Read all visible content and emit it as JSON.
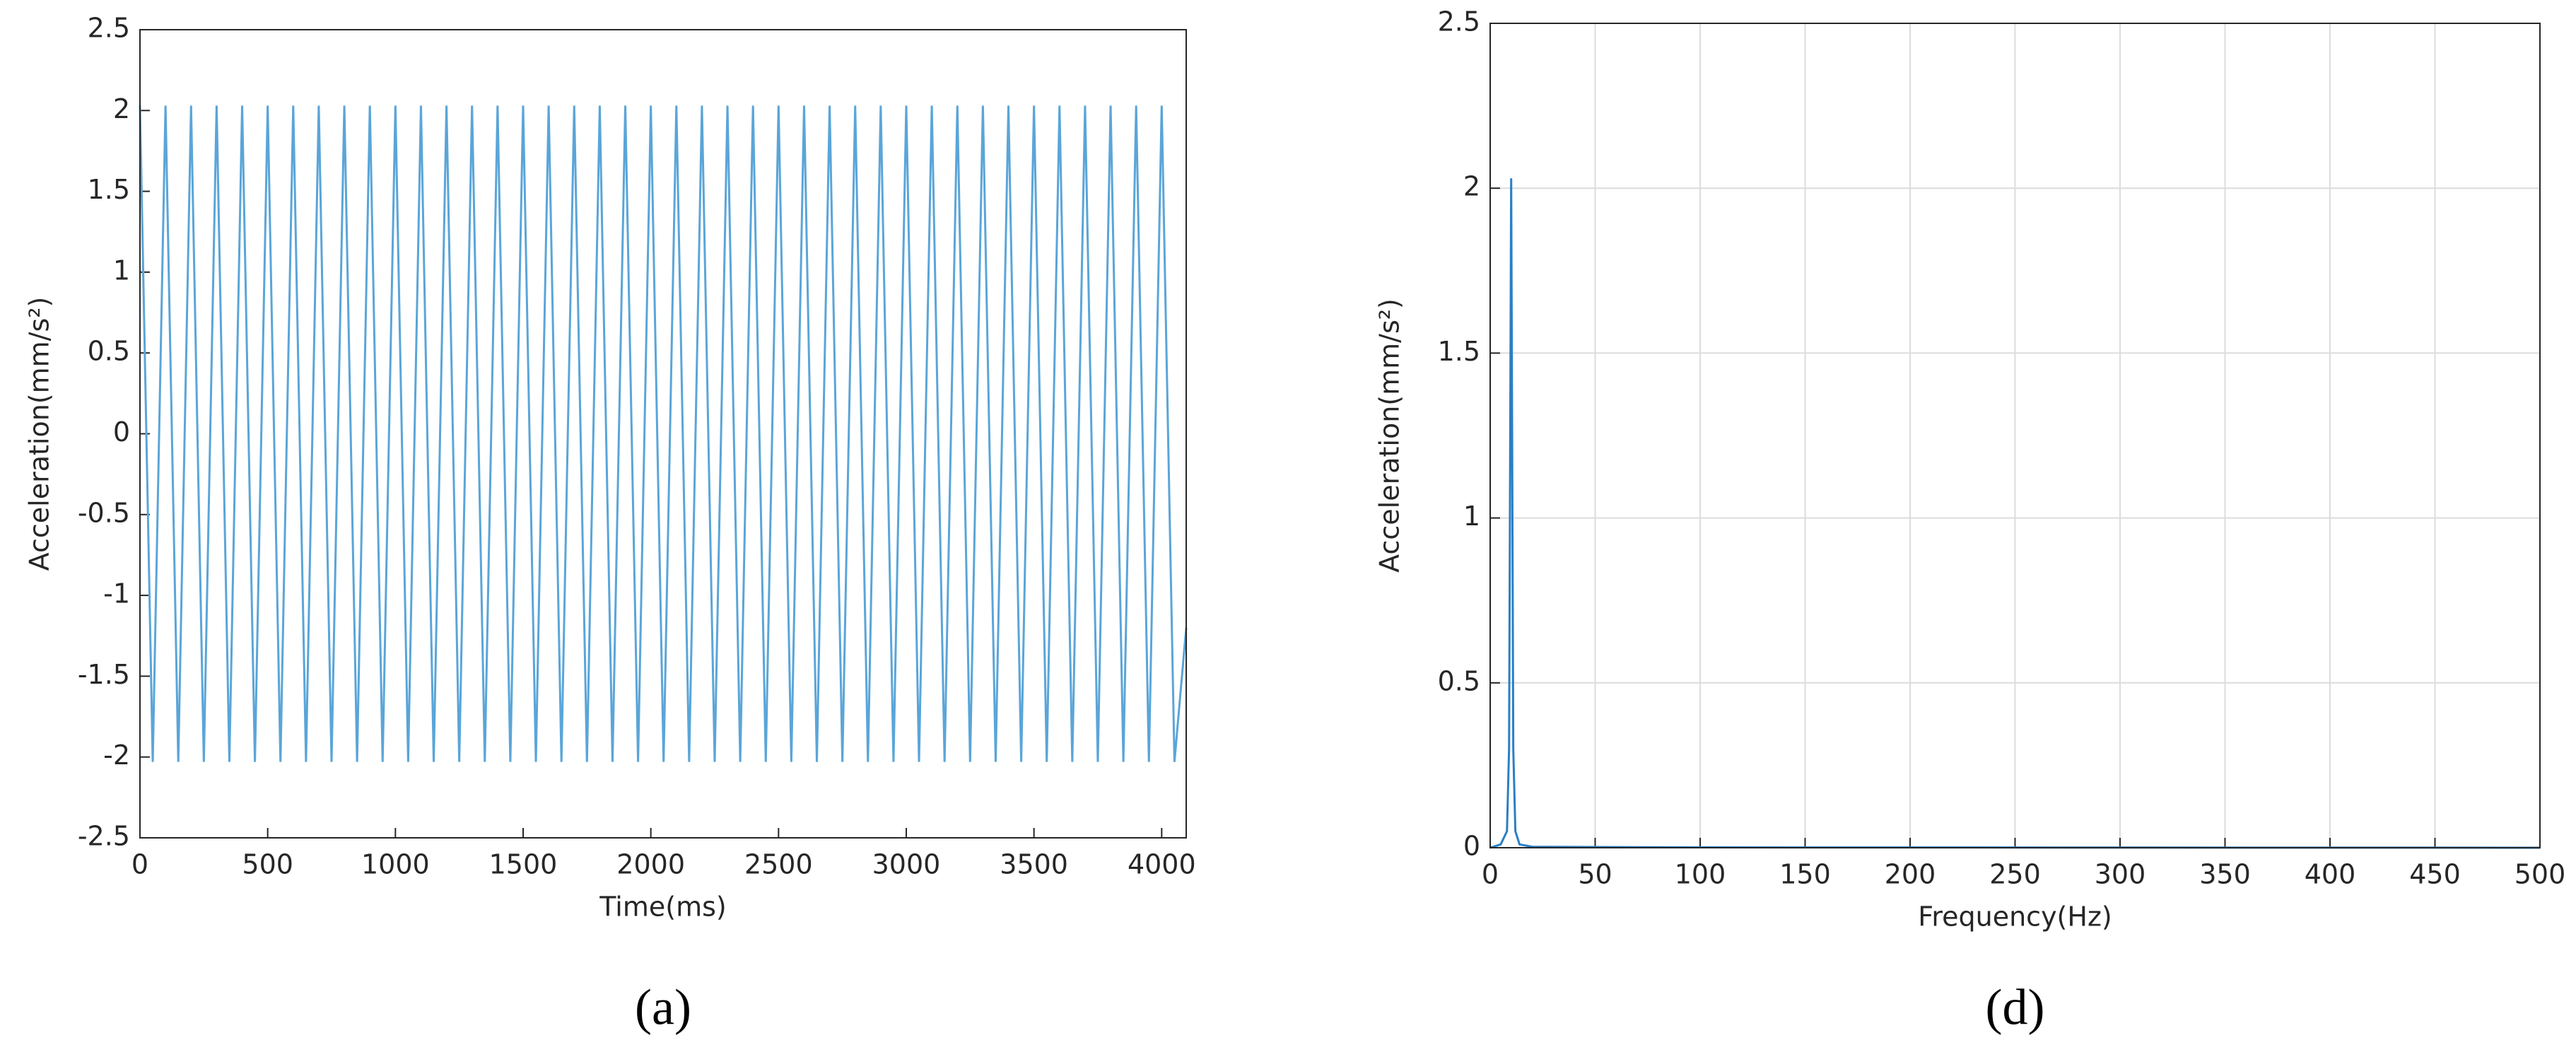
{
  "chart_data": [
    {
      "type": "line",
      "caption": "(a)",
      "x_label": "Time(ms)",
      "y_label": "Acceleration(mm/s²)",
      "xlim": [
        0,
        4096
      ],
      "ylim": [
        -2.5,
        2.5
      ],
      "xticks": [
        0,
        500,
        1000,
        1500,
        2000,
        2500,
        3000,
        3500,
        4000
      ],
      "yticks": [
        -2.5,
        -2,
        -1.5,
        -1,
        -0.5,
        0,
        0.5,
        1,
        1.5,
        2,
        2.5
      ],
      "grid": false,
      "x": [
        0,
        50,
        100,
        150,
        200,
        250,
        300,
        350,
        400,
        450,
        500,
        550,
        600,
        650,
        700,
        750,
        800,
        850,
        900,
        950,
        1000,
        1050,
        1100,
        1150,
        1200,
        1250,
        1300,
        1350,
        1400,
        1450,
        1500,
        1550,
        1600,
        1650,
        1700,
        1750,
        1800,
        1850,
        1900,
        1950,
        2000,
        2050,
        2100,
        2150,
        2200,
        2250,
        2300,
        2350,
        2400,
        2450,
        2500,
        2550,
        2600,
        2650,
        2700,
        2750,
        2800,
        2850,
        2900,
        2950,
        3000,
        3050,
        3100,
        3150,
        3200,
        3250,
        3300,
        3350,
        3400,
        3450,
        3500,
        3550,
        3600,
        3650,
        3700,
        3750,
        3800,
        3850,
        3900,
        3950,
        4000,
        4050,
        4096
      ],
      "series": [
        {
          "color": "#5aa5d8",
          "values": [
            2.03,
            -2.03,
            2.03,
            -2.03,
            2.03,
            -2.03,
            2.03,
            -2.03,
            2.03,
            -2.03,
            2.03,
            -2.03,
            2.03,
            -2.03,
            2.03,
            -2.03,
            2.03,
            -2.03,
            2.03,
            -2.03,
            2.03,
            -2.03,
            2.03,
            -2.03,
            2.03,
            -2.03,
            2.03,
            -2.03,
            2.03,
            -2.03,
            2.03,
            -2.03,
            2.03,
            -2.03,
            2.03,
            -2.03,
            2.03,
            -2.03,
            2.03,
            -2.03,
            2.03,
            -2.03,
            2.03,
            -2.03,
            2.03,
            -2.03,
            2.03,
            -2.03,
            2.03,
            -2.03,
            2.03,
            -2.03,
            2.03,
            -2.03,
            2.03,
            -2.03,
            2.03,
            -2.03,
            2.03,
            -2.03,
            2.03,
            -2.03,
            2.03,
            -2.03,
            2.03,
            -2.03,
            2.03,
            -2.03,
            2.03,
            -2.03,
            2.03,
            -2.03,
            2.03,
            -2.03,
            2.03,
            -2.03,
            2.03,
            -2.03,
            2.03,
            -2.03,
            2.03,
            -2.03,
            -1.2
          ]
        }
      ]
    },
    {
      "type": "line",
      "caption": "(d)",
      "x_label": "Frequency(Hz)",
      "y_label": "Acceleration(mm/s²)",
      "xlim": [
        0,
        500
      ],
      "ylim": [
        0,
        2.5
      ],
      "xticks": [
        0,
        50,
        100,
        150,
        200,
        250,
        300,
        350,
        400,
        450,
        500
      ],
      "yticks": [
        0,
        0.5,
        1,
        1.5,
        2,
        2.5
      ],
      "grid": true,
      "x": [
        0,
        5,
        8,
        9,
        10,
        11,
        12,
        14,
        20,
        100,
        500
      ],
      "series": [
        {
          "color": "#2a7fc4",
          "values": [
            0,
            0.01,
            0.05,
            0.3,
            2.03,
            0.3,
            0.05,
            0.01,
            0.003,
            0.001,
            0
          ]
        }
      ]
    }
  ]
}
